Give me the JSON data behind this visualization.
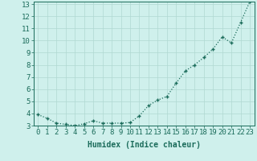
{
  "x": [
    0,
    1,
    2,
    3,
    4,
    5,
    6,
    7,
    8,
    9,
    10,
    11,
    12,
    13,
    14,
    15,
    16,
    17,
    18,
    19,
    20,
    21,
    22,
    23
  ],
  "y": [
    3.9,
    3.6,
    3.2,
    3.1,
    3.0,
    3.15,
    3.4,
    3.2,
    3.2,
    3.2,
    3.25,
    3.8,
    4.65,
    5.1,
    5.4,
    6.5,
    7.5,
    8.0,
    8.6,
    9.3,
    10.3,
    9.8,
    11.5,
    13.2
  ],
  "xlabel": "Humidex (Indice chaleur)",
  "ylim": [
    3,
    13.2
  ],
  "xlim": [
    -0.5,
    23.5
  ],
  "yticks": [
    3,
    4,
    5,
    6,
    7,
    8,
    9,
    10,
    11,
    12,
    13
  ],
  "line_color": "#1a6b5a",
  "marker_color": "#1a6b5a",
  "bg_color": "#cff0ec",
  "grid_color": "#b0d8d2",
  "xlabel_fontsize": 7,
  "tick_fontsize": 6.5
}
